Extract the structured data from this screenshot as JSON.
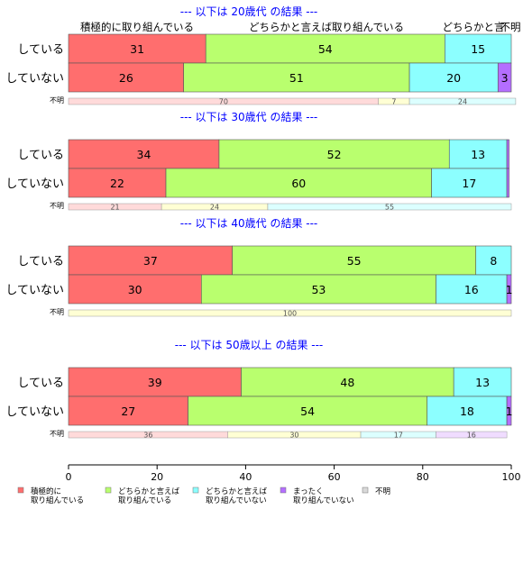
{
  "chart_data": {
    "type": "bar",
    "orientation": "horizontal",
    "stacked": true,
    "xlim": [
      0,
      100
    ],
    "x_ticks": [
      0,
      20,
      40,
      60,
      80,
      100
    ],
    "grid": false,
    "legend_position": "bottom",
    "header_labels": [
      "積極的に取り組んでいる",
      "どちらかと言えば取り組んでいる",
      "どちらかと言",
      "不明"
    ],
    "series": [
      {
        "key": "s1",
        "name": "積極的に\n取り組んでいる",
        "color": "#ff6e6e",
        "light": "#ffdada"
      },
      {
        "key": "s2",
        "name": "どちらかと言えば\n取り組んでいる",
        "color": "#b9ff6e",
        "light": "#ffffd4"
      },
      {
        "key": "s3",
        "name": "どちらかと言えば\n取り組んでいない",
        "color": "#8cffff",
        "light": "#dcffff"
      },
      {
        "key": "s4",
        "name": "まったく\n取り組んでいない",
        "color": "#b46eff",
        "light": "#f0dcff"
      },
      {
        "key": "s5",
        "name": "不明",
        "color": "#d9d9d9",
        "light": "#f0f0f0"
      }
    ],
    "panels": [
      {
        "title": "--- 以下は 20歳代 の結果 ---",
        "rows": [
          {
            "label": "している",
            "values": [
              31,
              54,
              15,
              0
            ],
            "labels": [
              "31",
              "54",
              "15",
              ""
            ]
          },
          {
            "label": "していない",
            "values": [
              26,
              51,
              20,
              3
            ],
            "labels": [
              "26",
              "51",
              "20",
              "3"
            ]
          }
        ],
        "unknown": {
          "label": "不明",
          "values": [
            70,
            7,
            24,
            0
          ],
          "labels": [
            "70",
            "7",
            "24",
            ""
          ]
        }
      },
      {
        "title": "--- 以下は 30歳代 の結果 ---",
        "rows": [
          {
            "label": "している",
            "values": [
              34,
              52,
              13,
              0.5
            ],
            "labels": [
              "34",
              "52",
              "13",
              ""
            ]
          },
          {
            "label": "していない",
            "values": [
              22,
              60,
              17,
              0.5
            ],
            "labels": [
              "22",
              "60",
              "17",
              ""
            ]
          }
        ],
        "unknown": {
          "label": "不明",
          "values": [
            21,
            24,
            55,
            0
          ],
          "labels": [
            "21",
            "24",
            "55",
            ""
          ]
        }
      },
      {
        "title": "--- 以下は 40歳代 の結果 ---",
        "rows": [
          {
            "label": "している",
            "values": [
              37,
              55,
              8,
              0
            ],
            "labels": [
              "37",
              "55",
              "8",
              ""
            ]
          },
          {
            "label": "していない",
            "values": [
              30,
              53,
              16,
              1
            ],
            "labels": [
              "30",
              "53",
              "16",
              "1"
            ]
          }
        ],
        "unknown": {
          "label": "不明",
          "values": [
            0,
            100,
            0,
            0
          ],
          "labels": [
            "",
            "100",
            "",
            ""
          ]
        }
      },
      {
        "title": "--- 以下は 50歳以上 の結果 ---",
        "rows": [
          {
            "label": "している",
            "values": [
              39,
              48,
              13,
              0
            ],
            "labels": [
              "39",
              "48",
              "13",
              ""
            ]
          },
          {
            "label": "していない",
            "values": [
              27,
              54,
              18,
              1
            ],
            "labels": [
              "27",
              "54",
              "18",
              "1"
            ]
          }
        ],
        "unknown": {
          "label": "不明",
          "values": [
            36,
            30,
            17,
            16
          ],
          "labels": [
            "36",
            "30",
            "17",
            "16"
          ]
        }
      }
    ]
  }
}
